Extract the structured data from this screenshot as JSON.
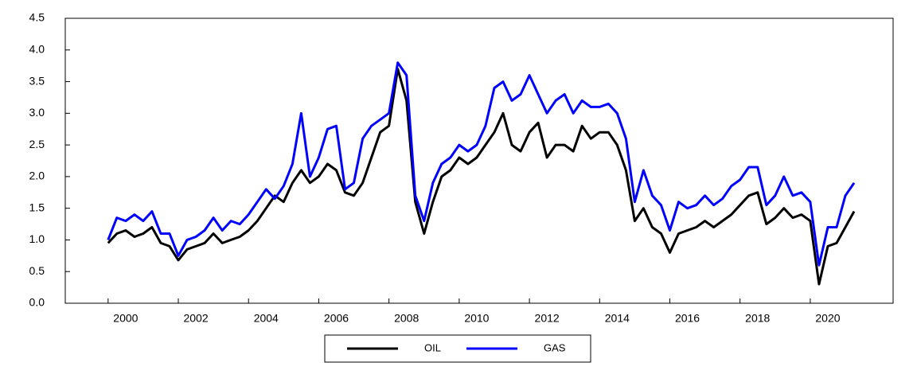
{
  "chart_data": {
    "type": "line",
    "x": [
      2000,
      2000.25,
      2000.5,
      2000.75,
      2001,
      2001.25,
      2001.5,
      2001.75,
      2002,
      2002.25,
      2002.5,
      2002.75,
      2003,
      2003.25,
      2003.5,
      2003.75,
      2004,
      2004.25,
      2004.5,
      2004.75,
      2005,
      2005.25,
      2005.5,
      2005.75,
      2006,
      2006.25,
      2006.5,
      2006.75,
      2007,
      2007.25,
      2007.5,
      2007.75,
      2008,
      2008.25,
      2008.5,
      2008.75,
      2009,
      2009.25,
      2009.5,
      2009.75,
      2010,
      2010.25,
      2010.5,
      2010.75,
      2011,
      2011.25,
      2011.5,
      2011.75,
      2012,
      2012.25,
      2012.5,
      2012.75,
      2013,
      2013.25,
      2013.5,
      2013.75,
      2014,
      2014.25,
      2014.5,
      2014.75,
      2015,
      2015.25,
      2015.5,
      2015.75,
      2016,
      2016.25,
      2016.5,
      2016.75,
      2017,
      2017.25,
      2017.5,
      2017.75,
      2018,
      2018.25,
      2018.5,
      2018.75,
      2019,
      2019.25,
      2019.5,
      2019.75,
      2020,
      2020.25,
      2020.5,
      2020.75,
      2021,
      2021.25
    ],
    "series": [
      {
        "name": "OIL",
        "color": "#000000",
        "values": [
          0.95,
          1.1,
          1.15,
          1.05,
          1.1,
          1.2,
          0.95,
          0.9,
          0.68,
          0.85,
          0.9,
          0.95,
          1.1,
          0.95,
          1.0,
          1.05,
          1.15,
          1.3,
          1.5,
          1.7,
          1.6,
          1.9,
          2.1,
          1.9,
          2.0,
          2.2,
          2.1,
          1.75,
          1.7,
          1.9,
          2.3,
          2.7,
          2.8,
          3.7,
          3.2,
          1.6,
          1.1,
          1.6,
          2.0,
          2.1,
          2.3,
          2.2,
          2.3,
          2.5,
          2.7,
          3.0,
          2.5,
          2.4,
          2.7,
          2.85,
          2.3,
          2.5,
          2.5,
          2.4,
          2.8,
          2.6,
          2.7,
          2.7,
          2.5,
          2.1,
          1.3,
          1.5,
          1.2,
          1.1,
          0.8,
          1.1,
          1.15,
          1.2,
          1.3,
          1.2,
          1.3,
          1.4,
          1.55,
          1.7,
          1.75,
          1.25,
          1.35,
          1.5,
          1.35,
          1.4,
          1.3,
          0.3,
          0.9,
          0.95,
          1.2,
          1.45
        ]
      },
      {
        "name": "GAS",
        "color": "#0000ff",
        "values": [
          1.0,
          1.35,
          1.3,
          1.4,
          1.3,
          1.45,
          1.1,
          1.1,
          0.75,
          1.0,
          1.05,
          1.15,
          1.35,
          1.15,
          1.3,
          1.25,
          1.4,
          1.6,
          1.8,
          1.65,
          1.85,
          2.2,
          3.0,
          2.0,
          2.3,
          2.75,
          2.8,
          1.8,
          1.9,
          2.6,
          2.8,
          2.9,
          3.0,
          3.8,
          3.6,
          1.7,
          1.3,
          1.9,
          2.2,
          2.3,
          2.5,
          2.4,
          2.5,
          2.8,
          3.4,
          3.5,
          3.2,
          3.3,
          3.6,
          3.3,
          3.0,
          3.2,
          3.3,
          3.0,
          3.2,
          3.1,
          3.1,
          3.15,
          3.0,
          2.6,
          1.6,
          2.1,
          1.7,
          1.55,
          1.15,
          1.6,
          1.5,
          1.55,
          1.7,
          1.55,
          1.65,
          1.85,
          1.95,
          2.15,
          2.15,
          1.55,
          1.7,
          2.0,
          1.7,
          1.75,
          1.6,
          0.6,
          1.2,
          1.2,
          1.7,
          1.9
        ]
      }
    ],
    "xlim": [
      1998.78,
      2022.36
    ],
    "xticks": [
      2000,
      2002,
      2004,
      2006,
      2008,
      2010,
      2012,
      2014,
      2016,
      2018,
      2020
    ],
    "ylim": [
      0,
      4.5
    ],
    "yticks": [
      {
        "value": 0,
        "label": "0.0"
      },
      0.5,
      {
        "value": 1,
        "label": "1.0"
      },
      1.5,
      {
        "value": 2,
        "label": "2.0"
      },
      2.5,
      {
        "value": 3,
        "label": "3.0"
      },
      3.5,
      {
        "value": 4,
        "label": "4.0"
      },
      4.5
    ],
    "legend": "bottom"
  }
}
